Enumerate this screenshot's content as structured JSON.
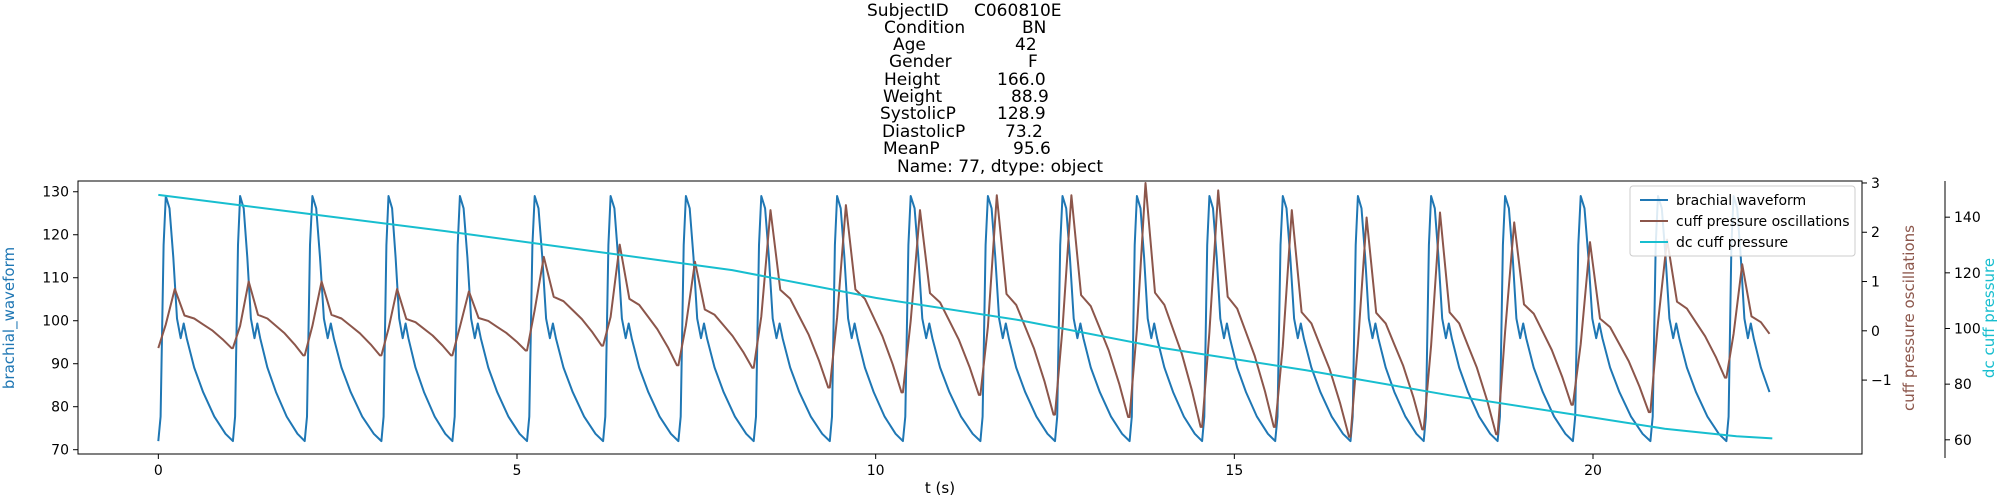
{
  "chart_data": {
    "type": "line",
    "title": {
      "lines": [
        {
          "key": "SubjectID",
          "value": "C060810E"
        },
        {
          "key": "Condition",
          "value": "BN"
        },
        {
          "key": "Age",
          "value": "42"
        },
        {
          "key": "Gender",
          "value": "F"
        },
        {
          "key": "Height",
          "value": "166.0"
        },
        {
          "key": "Weight",
          "value": "88.9"
        },
        {
          "key": "SystolicP",
          "value": "128.9"
        },
        {
          "key": "DiastolicP",
          "value": "73.2"
        },
        {
          "key": "MeanP",
          "value": "95.6"
        }
      ],
      "footer": "Name: 77, dtype: object"
    },
    "xlabel": "t (s)",
    "xlim": [
      -1.12,
      23.75
    ],
    "xticks": [
      0,
      5,
      10,
      15,
      20
    ],
    "axes": {
      "left": {
        "label": "brachial_waveform",
        "color": "#1f77b4",
        "ylim": [
          69,
          132.5
        ],
        "ticks": [
          70,
          80,
          90,
          100,
          110,
          120,
          130
        ]
      },
      "right1": {
        "label": "cuff pressure oscillations",
        "color": "#8c564b",
        "ylim": [
          -2.5,
          3.04
        ],
        "ticks": [
          -1,
          0,
          1,
          2,
          3
        ],
        "tick_labels": [
          "−1",
          "0",
          "1",
          "2",
          "3"
        ]
      },
      "right2": {
        "label": "dc cuff pressure",
        "color": "#17becf",
        "ylim": [
          54.9,
          153
        ],
        "ticks": [
          60,
          80,
          100,
          120,
          140
        ]
      }
    },
    "legend": {
      "placement": "top-right"
    },
    "series": [
      {
        "name": "brachial waveform",
        "axis": "left",
        "color": "#1f77b4",
        "beats": [
          0,
          1.04,
          2.04,
          3.11,
          4.1,
          5.14,
          6.2,
          7.25,
          8.3,
          9.36,
          10.38,
          11.46,
          12.5,
          13.54,
          14.55,
          15.57,
          16.62,
          17.64,
          18.67,
          19.72,
          20.8,
          21.86
        ],
        "diastolic": 72,
        "systolic": 129,
        "end_time": 22.5,
        "samples_note": "pulse waveform repeating every beat between diastolic and systolic values"
      },
      {
        "name": "cuff pressure oscillations",
        "axis": "right1",
        "color": "#8c564b",
        "x": [
          0,
          1.04,
          2.04,
          3.11,
          4.1,
          5.14,
          6.2,
          7.25,
          8.3,
          9.36,
          10.38,
          11.46,
          12.5,
          13.54,
          14.55,
          15.57,
          16.62,
          17.64,
          18.67,
          19.72,
          20.8,
          21.86
        ],
        "peak": [
          0.85,
          1.0,
          1.0,
          0.85,
          0.8,
          1.5,
          1.75,
          1.4,
          2.45,
          2.55,
          2.45,
          2.75,
          2.75,
          3.0,
          2.85,
          2.45,
          2.3,
          2.4,
          2.2,
          1.8,
          1.85,
          1.35
        ],
        "trough": [
          -0.35,
          -0.5,
          -0.5,
          -0.5,
          -0.4,
          -0.3,
          -0.7,
          -0.75,
          -1.15,
          -1.25,
          -1.3,
          -1.7,
          -1.75,
          -1.95,
          -1.95,
          -2.15,
          -2.0,
          -2.1,
          -1.5,
          -1.65,
          -0.95,
          -1.0
        ],
        "end_time": 22.5
      },
      {
        "name": "dc cuff pressure",
        "axis": "right2",
        "color": "#17becf",
        "x": [
          0,
          2,
          4,
          6,
          8,
          10,
          12,
          14,
          16,
          18,
          20,
          21,
          22,
          22.5
        ],
        "y": [
          148,
          141.5,
          135,
          128,
          121,
          111,
          103,
          93,
          85,
          76,
          68,
          64,
          61.3,
          60.5
        ]
      }
    ]
  }
}
